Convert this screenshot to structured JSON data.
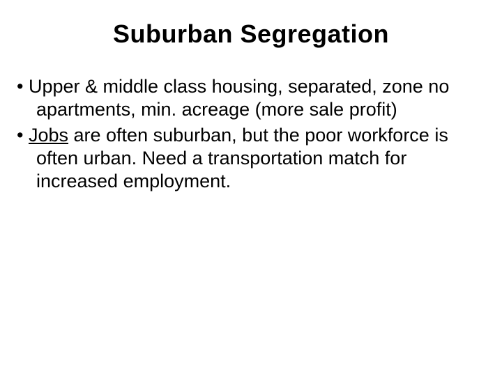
{
  "slide": {
    "title": "Suburban Segregation",
    "title_fontsize": 36,
    "title_weight": "bold",
    "title_align": "center",
    "background_color": "#ffffff",
    "text_color": "#000000",
    "font_family": "Arial",
    "bullets": [
      {
        "text_before": "Upper & middle class housing, separated, zone no apartments, min. acreage (more sale profit)",
        "underlined": "",
        "text_after": ""
      },
      {
        "text_before": "",
        "underlined": "Jobs",
        "text_after": " are often suburban, but the poor workforce is often urban. Need a transportation match for increased employment."
      }
    ],
    "bullet_fontsize": 27,
    "bullet_line_height": 1.22
  }
}
